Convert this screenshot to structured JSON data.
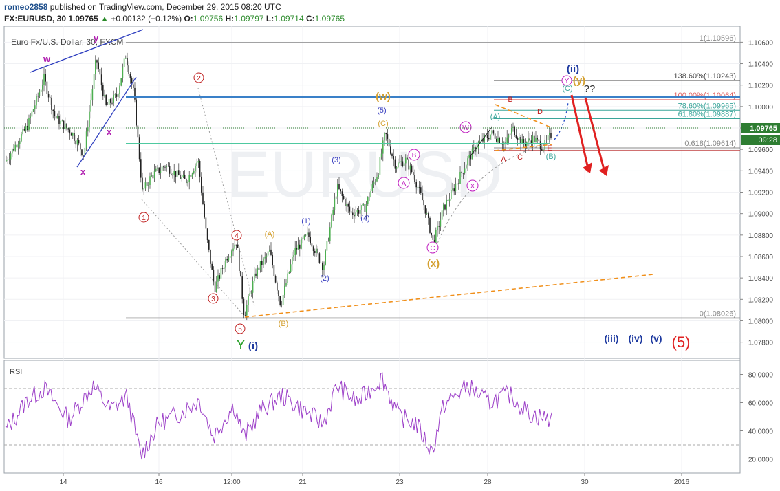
{
  "header": {
    "author": "romeo2858",
    "published": "published on TradingView.com, December 29, 2015 08:20 UTC",
    "symbol": "FX:EURUSD, 30",
    "price": "1.09765",
    "arrow": "▲",
    "change": "+0.00132 (+0.12%)",
    "o_label": "O:",
    "o": "1.09756",
    "h_label": "H:",
    "h": "1.09797",
    "l_label": "L:",
    "l": "1.09714",
    "c_label": "C:",
    "c": "1.09765"
  },
  "chart_data": {
    "type": "candlestick",
    "title": "Euro Fx/U.S. Dollar, 30, FXCM",
    "watermark": "EURUSD",
    "y_ticks": [
      "1.10600",
      "1.10400",
      "1.10200",
      "1.10000",
      "1.09800",
      "1.09600",
      "1.09400",
      "1.09200",
      "1.09000",
      "1.08800",
      "1.08600",
      "1.08400",
      "1.08200",
      "1.08000",
      "1.07800"
    ],
    "y_range": [
      1.0765,
      1.1075
    ],
    "x_ticks": [
      "14",
      "16",
      "12:00",
      "21",
      "23",
      "28",
      "30",
      "2016"
    ],
    "current_price_label": "1.09765",
    "countdown_label": "09:28",
    "fib_levels": [
      {
        "label": "1(1.10596)",
        "price": 1.10596,
        "color": "#888888"
      },
      {
        "label": "138.60%(1.10243)",
        "price": 1.10243,
        "color": "#444444"
      },
      {
        "label": "100.00%(1.10064)",
        "price": 1.10064,
        "color": "#e06060"
      },
      {
        "label": "78.60%(1.09965)",
        "price": 1.09965,
        "color": "#3aa59a"
      },
      {
        "label": "61.80%(1.09887)",
        "price": 1.09887,
        "color": "#3aa59a"
      },
      {
        "label": "0.618(1.09614)",
        "price": 1.09614,
        "color": "#888888"
      },
      {
        "label": "0(1.08026)",
        "price": 1.08026,
        "color": "#888888"
      }
    ],
    "wave_labels": [
      "w",
      "y",
      "x",
      "x",
      "1",
      "2",
      "3",
      "4",
      "5",
      "Y",
      "(i)",
      "(A)",
      "(B)",
      "(1)",
      "(2)",
      "(3)",
      "(4)",
      "(5)",
      "(C)",
      "(w)",
      "A",
      "B",
      "C",
      "(x)",
      "W",
      "X",
      "(A)",
      "A",
      "B",
      "C",
      "D",
      "E",
      "(B)",
      "(C)",
      "(ii)",
      "Y",
      "(y)",
      "??",
      "(iii)",
      "(iv)",
      "(v)",
      "(5)"
    ],
    "rsi": {
      "label": "RSI",
      "y_ticks": [
        "80.0000",
        "60.0000",
        "40.0000",
        "20.0000"
      ],
      "upper": 70,
      "lower": 30
    }
  }
}
